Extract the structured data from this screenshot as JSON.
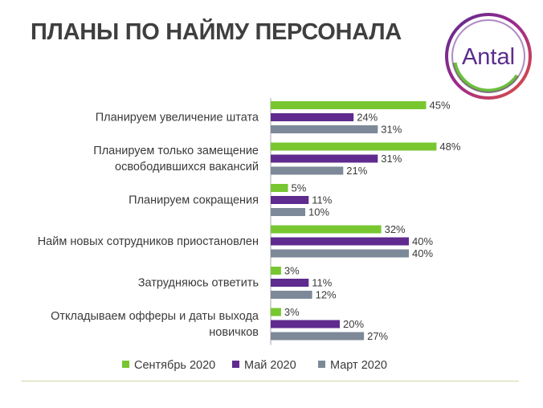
{
  "header": {
    "title": "ПЛАНЫ ПО НАЙМУ ПЕРСОНАЛА"
  },
  "logo": {
    "text": "Antal"
  },
  "colors": {
    "green": "#78c731",
    "purple": "#5f2b8f",
    "gray": "#7d8998",
    "title": "#3f3f3f",
    "label": "#3a3a3a"
  },
  "chart_data": {
    "type": "bar",
    "orientation": "horizontal",
    "categories": [
      [
        "Планируем увеличение штата"
      ],
      [
        "Планируем только замещение",
        "освободившихся вакансий"
      ],
      [
        "Планируем сокращения"
      ],
      [
        "Найм новых сотрудников приостановлен"
      ],
      [
        "Затрудняюсь ответить"
      ],
      [
        "Откладываем офферы и даты выхода",
        "новичков"
      ]
    ],
    "series": [
      {
        "name": "Сентябрь 2020",
        "color": "#78c731",
        "values": [
          45,
          48,
          5,
          32,
          3,
          3
        ]
      },
      {
        "name": "Май 2020",
        "color": "#5f2b8f",
        "values": [
          24,
          31,
          11,
          40,
          11,
          20
        ]
      },
      {
        "name": "Март 2020",
        "color": "#7d8998",
        "values": [
          31,
          21,
          10,
          40,
          12,
          27
        ]
      }
    ],
    "value_suffix": "%",
    "xlim": [
      0,
      50
    ],
    "grid": false,
    "legend_position": "bottom"
  }
}
